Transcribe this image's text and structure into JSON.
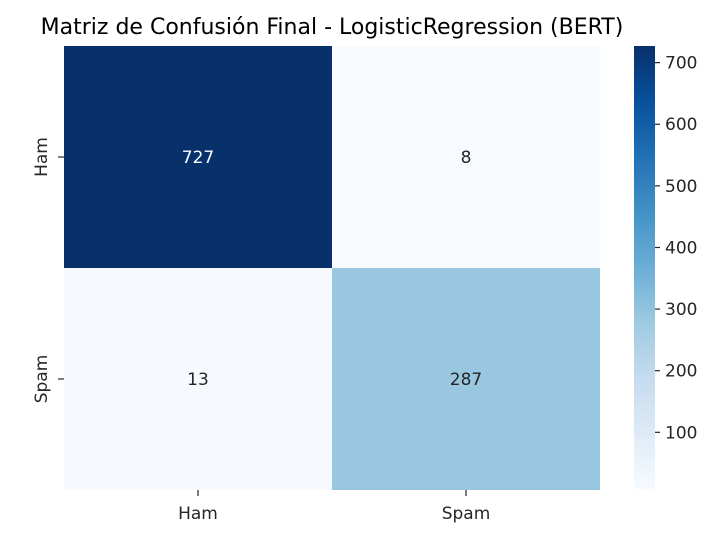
{
  "chart_data": {
    "type": "heatmap",
    "title": "Matriz de Confusión Final - LogisticRegression (BERT)",
    "xlabel": "",
    "ylabel": "",
    "x_categories": [
      "Ham",
      "Spam"
    ],
    "y_categories": [
      "Ham",
      "Spam"
    ],
    "values": [
      [
        727,
        8
      ],
      [
        13,
        287
      ]
    ],
    "colormap": "Blues",
    "color_range": [
      8,
      727
    ],
    "colorbar_ticks": [
      100,
      200,
      300,
      400,
      500,
      600,
      700
    ],
    "colors": {
      "low": "#f7fbff",
      "mid_low": "#c6dbef",
      "mid": "#6baed6",
      "mid_high": "#2171b5",
      "high": "#08306b"
    }
  }
}
